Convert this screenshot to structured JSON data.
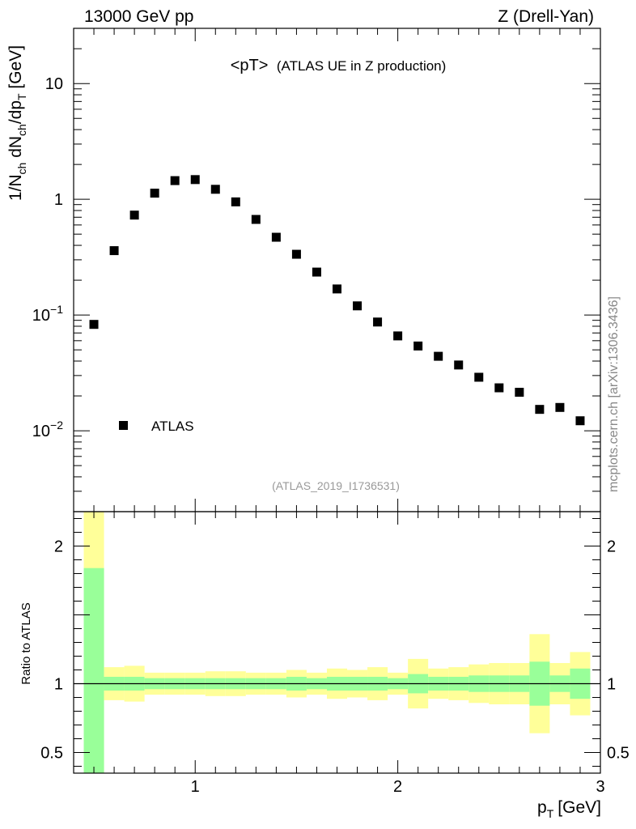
{
  "chart_data": {
    "type": "scatter",
    "header_left": "13000 GeV pp",
    "header_right": "Z (Drell-Yan)",
    "title_main": "<pT>",
    "title_sub": "(ATLAS UE in Z production)",
    "analysis_id": "(ATLAS_2019_I1736531)",
    "side_label": "mcplots.cern.ch [arXiv:1306.3436]",
    "xlabel_main": "p",
    "xlabel_sub": "T",
    "xlabel_unit": "[GeV]",
    "ylabel_upper": "1/N_ch dN_ch/dp_T [GeV]",
    "ylabel_lower": "Ratio to ATLAS",
    "xlim": [
      0.4,
      3.0
    ],
    "upper_ylim": [
      0.002,
      30
    ],
    "upper_log": true,
    "lower_ylim": [
      0.35,
      2.25
    ],
    "x_ticks": [
      {
        "value": 1,
        "label": "1"
      },
      {
        "value": 2,
        "label": "2"
      },
      {
        "value": 3,
        "label": "3"
      }
    ],
    "upper_y_ticks": [
      {
        "value": 10,
        "base": "10",
        "exp": ""
      },
      {
        "value": 1,
        "base": "1",
        "exp": ""
      },
      {
        "value": 0.1,
        "base": "10",
        "exp": "−1"
      },
      {
        "value": 0.01,
        "base": "10",
        "exp": "−2"
      }
    ],
    "lower_y_ticks": [
      {
        "value": 2,
        "label": "2"
      },
      {
        "value": 1,
        "label": "1"
      },
      {
        "value": 0.5,
        "label": "0.5"
      }
    ],
    "legend": [
      {
        "name": "ATLAS",
        "marker": "square"
      }
    ],
    "series": [
      {
        "name": "ATLAS",
        "x": [
          0.5,
          0.6,
          0.7,
          0.8,
          0.9,
          1.0,
          1.1,
          1.2,
          1.3,
          1.4,
          1.5,
          1.6,
          1.7,
          1.8,
          1.9,
          2.0,
          2.1,
          2.2,
          2.3,
          2.4,
          2.5,
          2.6,
          2.7,
          2.8,
          2.9
        ],
        "y": [
          0.083,
          0.36,
          0.73,
          1.13,
          1.45,
          1.48,
          1.22,
          0.95,
          0.67,
          0.47,
          0.335,
          0.235,
          0.168,
          0.12,
          0.087,
          0.066,
          0.054,
          0.044,
          0.037,
          0.029,
          0.0235,
          0.0215,
          0.0153,
          0.0159,
          0.0122
        ]
      }
    ],
    "ratio_bands": {
      "bin_edges": [
        0.45,
        0.55,
        0.65,
        0.75,
        0.85,
        0.95,
        1.05,
        1.15,
        1.25,
        1.35,
        1.45,
        1.55,
        1.65,
        1.75,
        1.85,
        1.95,
        2.05,
        2.15,
        2.25,
        2.35,
        2.45,
        2.55,
        2.65,
        2.75,
        2.85,
        2.95
      ],
      "inner_color": "#99ff99",
      "outer_color": "#ffff99",
      "inner_lo": [
        0.3,
        0.95,
        0.95,
        0.96,
        0.96,
        0.96,
        0.96,
        0.96,
        0.96,
        0.96,
        0.95,
        0.96,
        0.95,
        0.95,
        0.95,
        0.96,
        0.93,
        0.95,
        0.95,
        0.94,
        0.94,
        0.94,
        0.84,
        0.94,
        0.89
      ],
      "inner_hi": [
        1.84,
        1.05,
        1.05,
        1.04,
        1.04,
        1.04,
        1.04,
        1.04,
        1.04,
        1.04,
        1.05,
        1.04,
        1.05,
        1.05,
        1.05,
        1.04,
        1.07,
        1.05,
        1.05,
        1.06,
        1.06,
        1.06,
        1.16,
        1.06,
        1.11
      ],
      "outer_lo": [
        0.3,
        0.88,
        0.87,
        0.92,
        0.92,
        0.92,
        0.91,
        0.91,
        0.92,
        0.92,
        0.9,
        0.92,
        0.89,
        0.9,
        0.88,
        0.92,
        0.82,
        0.89,
        0.88,
        0.86,
        0.85,
        0.85,
        0.64,
        0.85,
        0.77
      ],
      "outer_hi": [
        2.25,
        1.12,
        1.13,
        1.08,
        1.08,
        1.08,
        1.09,
        1.09,
        1.08,
        1.08,
        1.1,
        1.08,
        1.11,
        1.1,
        1.12,
        1.08,
        1.18,
        1.11,
        1.12,
        1.14,
        1.15,
        1.15,
        1.36,
        1.15,
        1.23
      ]
    }
  }
}
